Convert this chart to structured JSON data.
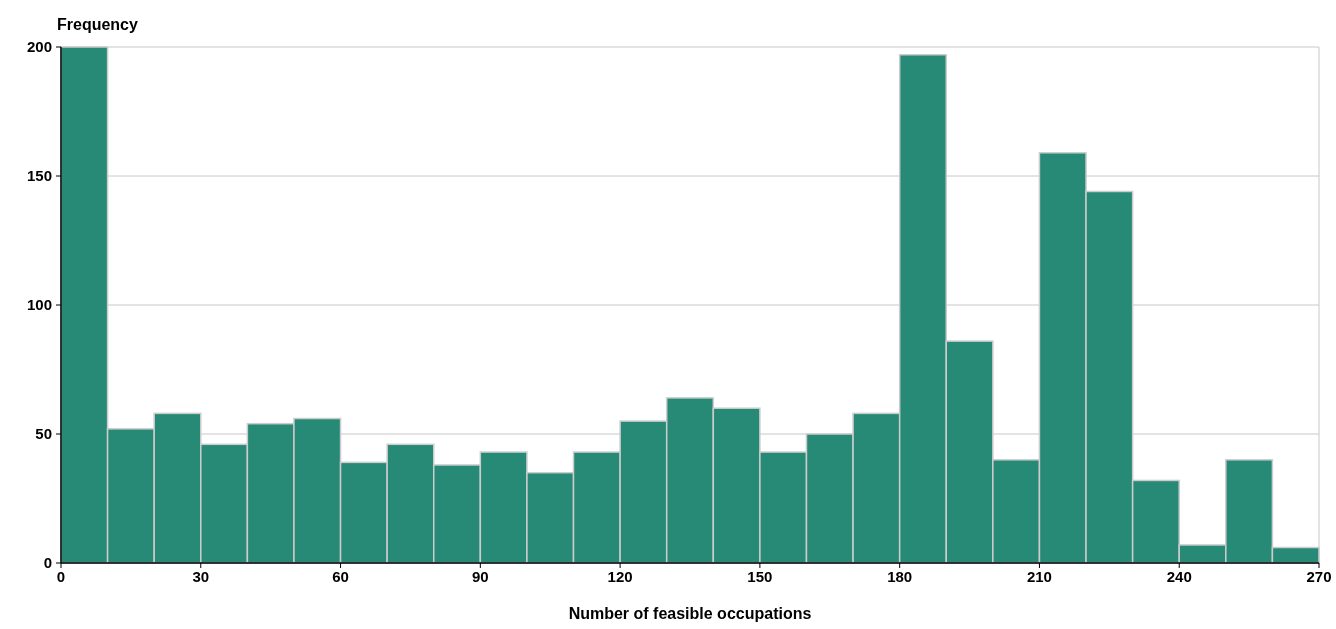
{
  "chart_data": {
    "type": "histogram",
    "xlabel": "Number of feasible occupations",
    "ylabel": "Frequency",
    "bins": [
      0,
      10,
      20,
      30,
      40,
      50,
      60,
      70,
      80,
      90,
      100,
      110,
      120,
      130,
      140,
      150,
      160,
      170,
      180,
      190,
      200,
      210,
      220,
      230,
      240,
      250,
      260,
      270
    ],
    "values": [
      200,
      52,
      58,
      46,
      54,
      56,
      39,
      46,
      38,
      43,
      35,
      43,
      55,
      64,
      60,
      43,
      50,
      58,
      197,
      86,
      40,
      159,
      144,
      32,
      7,
      40,
      6
    ],
    "color": "#278a76",
    "xlim": [
      0,
      270
    ],
    "xticks": [
      0,
      30,
      60,
      90,
      120,
      150,
      180,
      210,
      240,
      270
    ],
    "ylim": [
      0,
      200
    ],
    "yticks": [
      0,
      50,
      100,
      150,
      200
    ],
    "grid": "y"
  }
}
